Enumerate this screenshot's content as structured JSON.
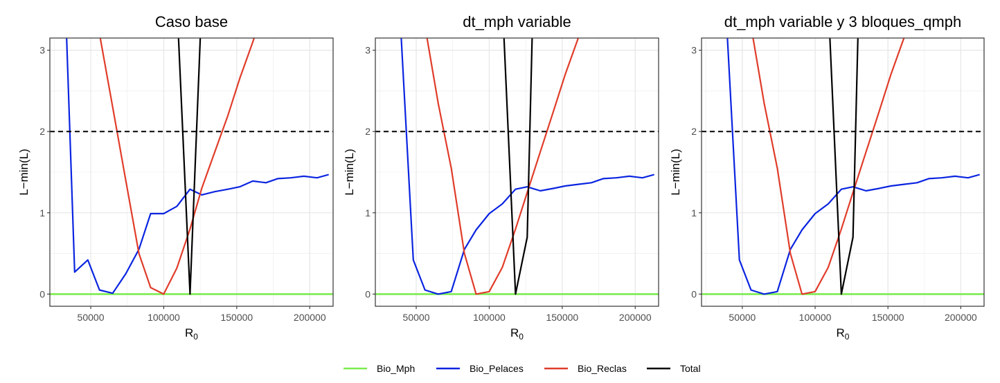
{
  "chart_data": [
    {
      "type": "line",
      "title": "Caso base",
      "xlabel": "R",
      "xlabel_sub": "0",
      "ylabel": "L−min(L)",
      "xlim": [
        22000,
        216000
      ],
      "ylim": [
        -0.15,
        3.15
      ],
      "xticks": [
        50000,
        100000,
        150000,
        200000
      ],
      "xtick_labels": [
        "50000",
        "100000",
        "150000",
        "200000"
      ],
      "yticks": [
        0,
        1,
        2,
        3
      ],
      "ytick_labels": [
        "0",
        "1",
        "2",
        "3"
      ],
      "grid": true,
      "hline": {
        "y": 2,
        "style": "dashed",
        "color": "#000000"
      },
      "series": [
        {
          "name": "Bio_Mph",
          "color": "#7CEC4F",
          "x": [
            22000,
            216000
          ],
          "y": [
            0,
            0
          ]
        },
        {
          "name": "Bio_Pelaces",
          "color": "#0A24E0",
          "x": [
            33000,
            39000,
            48000,
            56000,
            65000,
            74000,
            83000,
            91000,
            100000,
            109000,
            118000,
            126000,
            135000,
            144000,
            152000,
            161000,
            170000,
            178000,
            187000,
            196000,
            205000,
            213000
          ],
          "y": [
            3.4,
            0.27,
            0.42,
            0.05,
            0.01,
            0.25,
            0.55,
            0.99,
            0.99,
            1.08,
            1.29,
            1.22,
            1.26,
            1.29,
            1.32,
            1.39,
            1.37,
            1.42,
            1.43,
            1.45,
            1.43,
            1.47
          ]
        },
        {
          "name": "Bio_Reclas",
          "color": "#E03C2A",
          "x": [
            55000,
            65000,
            74000,
            83000,
            91000,
            100000,
            109000,
            118000,
            126000,
            135000,
            144000,
            152000,
            161000,
            170000
          ],
          "y": [
            3.3,
            2.3,
            1.4,
            0.5,
            0.08,
            0.0,
            0.32,
            0.8,
            1.3,
            1.75,
            2.2,
            2.65,
            3.1,
            3.6
          ]
        },
        {
          "name": "Total",
          "color": "#000000",
          "x": [
            109000,
            118000,
            126000
          ],
          "y": [
            3.6,
            0.0,
            3.6
          ]
        }
      ]
    },
    {
      "type": "line",
      "title": "dt_mph variable",
      "xlabel": "R",
      "xlabel_sub": "0",
      "ylabel": "L−min(L)",
      "xlim": [
        22000,
        216000
      ],
      "ylim": [
        -0.15,
        3.15
      ],
      "xticks": [
        50000,
        100000,
        150000,
        200000
      ],
      "xtick_labels": [
        "50000",
        "100000",
        "150000",
        "200000"
      ],
      "yticks": [
        0,
        1,
        2,
        3
      ],
      "ytick_labels": [
        "0",
        "1",
        "2",
        "3"
      ],
      "grid": true,
      "hline": {
        "y": 2,
        "style": "dashed",
        "color": "#000000"
      },
      "series": [
        {
          "name": "Bio_Mph",
          "color": "#7CEC4F",
          "x": [
            22000,
            216000
          ],
          "y": [
            0,
            0
          ]
        },
        {
          "name": "Bio_Pelaces",
          "color": "#0A24E0",
          "x": [
            39000,
            48000,
            56000,
            65000,
            74000,
            83000,
            91000,
            100000,
            109000,
            118000,
            126000,
            135000,
            144000,
            152000,
            161000,
            170000,
            178000,
            187000,
            196000,
            205000,
            213000
          ],
          "y": [
            3.4,
            0.42,
            0.05,
            0.0,
            0.03,
            0.55,
            0.79,
            0.99,
            1.11,
            1.29,
            1.32,
            1.27,
            1.3,
            1.33,
            1.35,
            1.37,
            1.42,
            1.43,
            1.45,
            1.43,
            1.47
          ]
        },
        {
          "name": "Bio_Reclas",
          "color": "#E03C2A",
          "x": [
            55000,
            65000,
            74000,
            83000,
            91000,
            100000,
            109000,
            118000,
            126000,
            135000,
            144000,
            152000,
            161000
          ],
          "y": [
            3.4,
            2.35,
            1.55,
            0.5,
            0.0,
            0.03,
            0.33,
            0.8,
            1.25,
            1.75,
            2.25,
            2.7,
            3.15
          ]
        },
        {
          "name": "Total",
          "color": "#000000",
          "x": [
            109000,
            118000,
            126000,
            130000
          ],
          "y": [
            3.6,
            0.0,
            0.7,
            3.6
          ]
        }
      ]
    },
    {
      "type": "line",
      "title": "dt_mph variable y 3 bloques_qmph",
      "xlabel": "R",
      "xlabel_sub": "0",
      "ylabel": "L−min(L)",
      "xlim": [
        22000,
        216000
      ],
      "ylim": [
        -0.15,
        3.15
      ],
      "xticks": [
        50000,
        100000,
        150000,
        200000
      ],
      "xtick_labels": [
        "50000",
        "100000",
        "150000",
        "200000"
      ],
      "yticks": [
        0,
        1,
        2,
        3
      ],
      "ytick_labels": [
        "0",
        "1",
        "2",
        "3"
      ],
      "grid": true,
      "hline": {
        "y": 2,
        "style": "dashed",
        "color": "#000000"
      },
      "series": [
        {
          "name": "Bio_Mph",
          "color": "#7CEC4F",
          "x": [
            22000,
            216000
          ],
          "y": [
            0,
            0
          ]
        },
        {
          "name": "Bio_Pelaces",
          "color": "#0A24E0",
          "x": [
            39000,
            48000,
            56000,
            65000,
            74000,
            83000,
            91000,
            100000,
            109000,
            118000,
            126000,
            135000,
            144000,
            152000,
            161000,
            170000,
            178000,
            187000,
            196000,
            205000,
            213000
          ],
          "y": [
            3.4,
            0.42,
            0.05,
            0.0,
            0.03,
            0.55,
            0.79,
            0.99,
            1.11,
            1.29,
            1.32,
            1.27,
            1.3,
            1.33,
            1.35,
            1.37,
            1.42,
            1.43,
            1.45,
            1.43,
            1.47
          ]
        },
        {
          "name": "Bio_Reclas",
          "color": "#E03C2A",
          "x": [
            55000,
            65000,
            74000,
            83000,
            91000,
            100000,
            109000,
            118000,
            126000,
            135000,
            144000,
            152000,
            161000
          ],
          "y": [
            3.4,
            2.35,
            1.55,
            0.5,
            0.0,
            0.03,
            0.33,
            0.8,
            1.25,
            1.75,
            2.25,
            2.7,
            3.15
          ]
        },
        {
          "name": "Total",
          "color": "#000000",
          "x": [
            109000,
            118000,
            126000,
            130000
          ],
          "y": [
            3.6,
            0.0,
            0.7,
            3.6
          ]
        }
      ]
    }
  ],
  "legend": {
    "position": "bottom",
    "items": [
      {
        "label": "Bio_Mph",
        "color": "#7CEC4F"
      },
      {
        "label": "Bio_Pelaces",
        "color": "#0A24E0"
      },
      {
        "label": "Bio_Reclas",
        "color": "#E03C2A"
      },
      {
        "label": "Total",
        "color": "#000000"
      }
    ]
  }
}
